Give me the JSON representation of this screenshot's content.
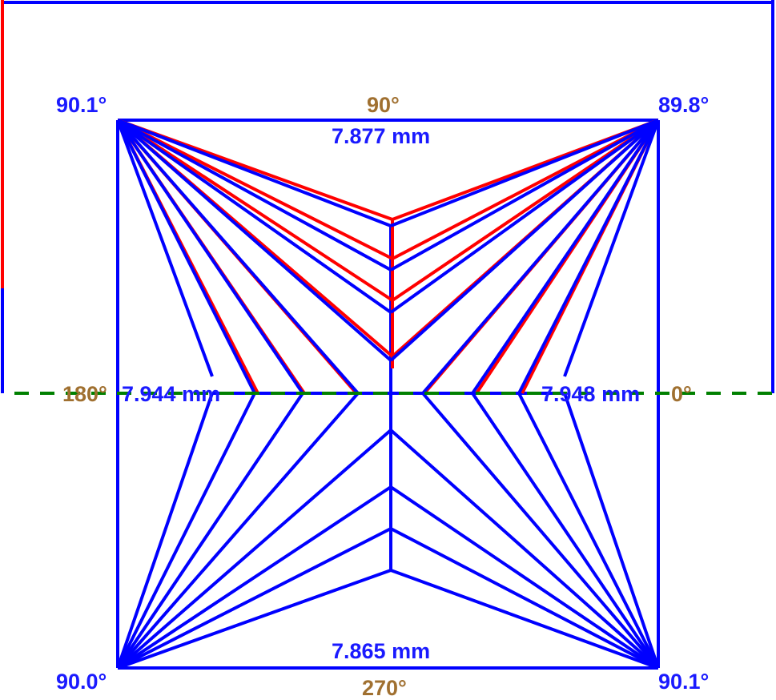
{
  "colors": {
    "measured": "#0000ff",
    "reference": "#ff0000",
    "axis": "#008000",
    "direction_label": "#a07030"
  },
  "corner_angles": {
    "top_left": "90.1°",
    "top_right": "89.8°",
    "bottom_left": "90.0°",
    "bottom_right": "90.1°"
  },
  "direction_labels": {
    "top": "90°",
    "left": "180°",
    "right": "0°",
    "bottom": "270°"
  },
  "side_lengths": {
    "top": "7.877 mm",
    "left": "7.944 mm",
    "right": "7.948 mm",
    "bottom": "7.865 mm"
  }
}
